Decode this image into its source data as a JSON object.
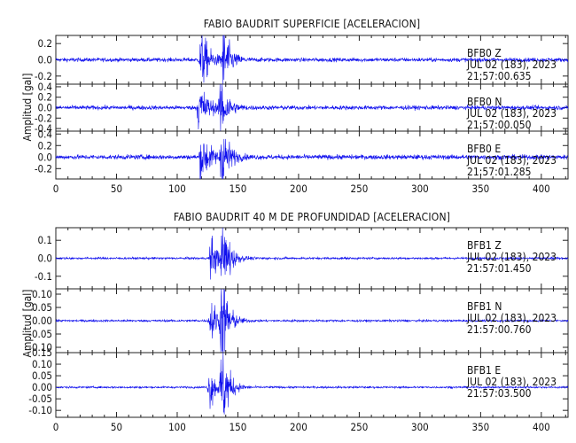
{
  "colors": {
    "trace": "#1010ee",
    "axis": "#222222",
    "background": "#ffffff",
    "text": "#111111"
  },
  "chart_data": [
    {
      "type": "line",
      "title": "FABIO BAUDRIT SUPERFICIE [ACELERACION]",
      "ylabel": "Amplitud [gal]",
      "xlim": [
        0,
        422
      ],
      "x_ticks": [
        0,
        50,
        100,
        150,
        200,
        250,
        300,
        350,
        400
      ],
      "panels": [
        {
          "station": "BFB0",
          "channel": "Z",
          "date": "JUL 02 (183), 2023",
          "time": "21:57:00.635",
          "ylim": [
            -0.3,
            0.3
          ],
          "y_ticks": [
            -0.2,
            0.0,
            0.2
          ],
          "y_tick_labels": [
            "-0.2",
            "0.0",
            "0.2"
          ],
          "noise": 0.012,
          "bursts": [
            {
              "t": 120,
              "amp": 0.22,
              "width": 6
            },
            {
              "t": 138,
              "amp": 0.26,
              "width": 5
            }
          ]
        },
        {
          "station": "BFB0",
          "channel": "N",
          "date": "JUL 02 (183), 2023",
          "time": "21:57:00.050",
          "ylim": [
            -0.45,
            0.45
          ],
          "y_ticks": [
            -0.4,
            -0.2,
            0.0,
            0.2,
            0.4
          ],
          "y_tick_labels": [
            "-0.4",
            "-0.2",
            "0.0",
            "0.2",
            "0.4"
          ],
          "noise": 0.02,
          "bursts": [
            {
              "t": 118,
              "amp": 0.28,
              "width": 7
            },
            {
              "t": 136,
              "amp": 0.38,
              "width": 5
            }
          ]
        },
        {
          "station": "BFB0",
          "channel": "E",
          "date": "JUL 02 (183), 2023",
          "time": "21:57:01.285",
          "ylim": [
            -0.38,
            0.45
          ],
          "y_ticks": [
            -0.2,
            0.0,
            0.2,
            0.4
          ],
          "y_tick_labels": [
            "-0.2",
            "0.0",
            "0.2",
            "0.4"
          ],
          "noise": 0.02,
          "bursts": [
            {
              "t": 120,
              "amp": 0.26,
              "width": 7
            },
            {
              "t": 137,
              "amp": 0.36,
              "width": 5
            }
          ]
        }
      ]
    },
    {
      "type": "line",
      "title": "FABIO BAUDRIT 40 M DE PROFUNDIDAD [ACELERACION]",
      "ylabel": "Amplitud [gal]",
      "xlim": [
        0,
        422
      ],
      "x_ticks": [
        0,
        50,
        100,
        150,
        200,
        250,
        300,
        350,
        400
      ],
      "panels": [
        {
          "station": "BFB1",
          "channel": "Z",
          "date": "JUL 02 (183), 2023",
          "time": "21:57:01.450",
          "ylim": [
            -0.17,
            0.17
          ],
          "y_ticks": [
            -0.1,
            0.0,
            0.1
          ],
          "y_tick_labels": [
            "-0.1",
            "0.0",
            "0.1"
          ],
          "noise": 0.003,
          "bursts": [
            {
              "t": 128,
              "amp": 0.07,
              "width": 6
            },
            {
              "t": 138,
              "amp": 0.14,
              "width": 5
            }
          ]
        },
        {
          "station": "BFB1",
          "channel": "N",
          "date": "JUL 02 (183), 2023",
          "time": "21:57:00.760",
          "ylim": [
            -0.12,
            0.12
          ],
          "y_ticks": [
            -0.1,
            -0.05,
            0.0,
            0.05,
            0.1
          ],
          "y_tick_labels": [
            "-0.10",
            "-0.05",
            "0.00",
            "0.05",
            "0.10"
          ],
          "noise": 0.002,
          "bursts": [
            {
              "t": 128,
              "amp": 0.05,
              "width": 6
            },
            {
              "t": 137,
              "amp": 0.1,
              "width": 5
            }
          ]
        },
        {
          "station": "BFB1",
          "channel": "E",
          "date": "JUL 02 (183), 2023",
          "time": "21:57:03.500",
          "ylim": [
            -0.13,
            0.15
          ],
          "y_ticks": [
            -0.1,
            -0.05,
            0.0,
            0.05,
            0.1,
            0.15
          ],
          "y_tick_labels": [
            "-0.10",
            "-0.05",
            "0.00",
            "0.05",
            "0.10",
            "0.15"
          ],
          "noise": 0.002,
          "bursts": [
            {
              "t": 127,
              "amp": 0.05,
              "width": 6
            },
            {
              "t": 137,
              "amp": 0.12,
              "width": 5
            }
          ]
        }
      ]
    }
  ]
}
